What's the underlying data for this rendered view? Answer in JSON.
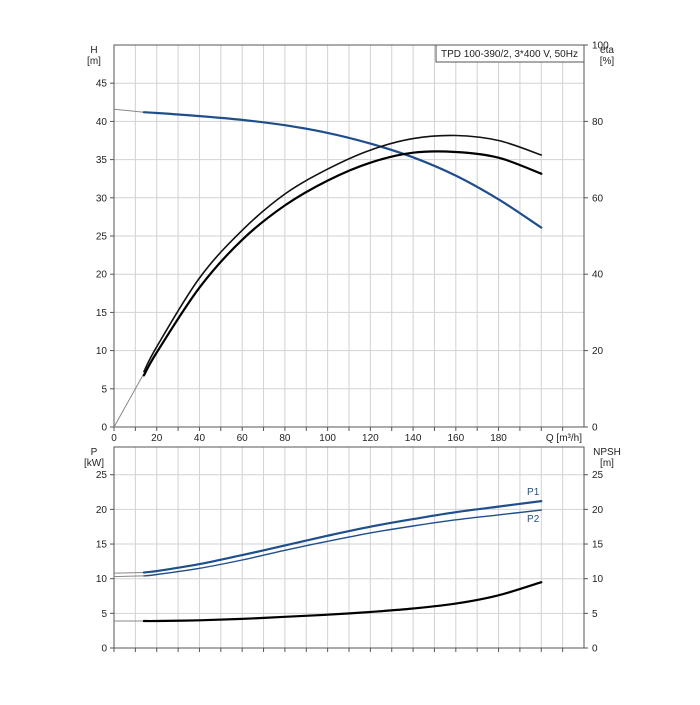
{
  "chart_data": [
    {
      "type": "line",
      "title": "TPD 100-390/2, 3*400 V, 50Hz",
      "xlabel": "Q [m³/h]",
      "xlim": [
        0,
        220
      ],
      "xticks": [
        0,
        20,
        40,
        60,
        80,
        100,
        120,
        140,
        160,
        180
      ],
      "y_left": {
        "label_lines": [
          "H",
          "[m]"
        ],
        "ylim": [
          0,
          50
        ],
        "ticks": [
          0,
          5,
          10,
          15,
          20,
          25,
          30,
          35,
          40,
          45
        ]
      },
      "y_right": {
        "label_lines": [
          "eta",
          "[%]"
        ],
        "ylim": [
          0,
          100
        ],
        "ticks": [
          0,
          20,
          40,
          60,
          80,
          100
        ]
      },
      "series": [
        {
          "axis": "left",
          "color": "#1f4e8c",
          "extension": [
            [
              0,
              41.6
            ],
            [
              14,
              41.2
            ]
          ],
          "x": [
            14,
            20,
            40,
            60,
            80,
            100,
            120,
            140,
            160,
            180,
            200
          ],
          "y": [
            41.2,
            41.1,
            40.7,
            40.2,
            39.5,
            38.5,
            37.1,
            35.3,
            32.9,
            29.8,
            26.1
          ]
        },
        {
          "axis": "right",
          "color": "#111111",
          "extension": [
            [
              0,
              0
            ],
            [
              14,
              14
            ]
          ],
          "x": [
            14,
            20,
            40,
            60,
            80,
            100,
            120,
            140,
            160,
            180,
            200
          ],
          "y": [
            14.5,
            21,
            39,
            51.5,
            61,
            67.5,
            72.5,
            75.5,
            76.3,
            75,
            71.2
          ]
        },
        {
          "axis": "right",
          "color": "#000000",
          "x": [
            14,
            20,
            40,
            60,
            80,
            100,
            120,
            140,
            160,
            180,
            200
          ],
          "y": [
            13.5,
            19.5,
            36.5,
            49,
            58,
            64.5,
            69.2,
            71.8,
            72,
            70.5,
            66.3
          ]
        }
      ]
    },
    {
      "type": "line",
      "xlim": [
        0,
        220
      ],
      "y_left": {
        "label_lines": [
          "P",
          "[kW]"
        ],
        "ylim": [
          0,
          29
        ],
        "ticks": [
          0,
          5,
          10,
          15,
          20,
          25
        ]
      },
      "y_right": {
        "label_lines": [
          "NPSH",
          "[m]"
        ],
        "ylim": [
          0,
          29
        ],
        "ticks": [
          0,
          5,
          10,
          15,
          20,
          25
        ]
      },
      "series": [
        {
          "name": "P1",
          "axis": "left",
          "color": "#1f4e8c",
          "extension": [
            [
              0,
              10.8
            ],
            [
              14,
              10.9
            ]
          ],
          "x": [
            14,
            20,
            40,
            60,
            80,
            100,
            120,
            140,
            160,
            180,
            200
          ],
          "y": [
            10.9,
            11.1,
            12.1,
            13.4,
            14.8,
            16.2,
            17.5,
            18.6,
            19.6,
            20.4,
            21.2
          ]
        },
        {
          "name": "P2",
          "axis": "left",
          "color": "#1f4e8c",
          "extension": [
            [
              0,
              10.3
            ],
            [
              14,
              10.4
            ]
          ],
          "x": [
            14,
            20,
            40,
            60,
            80,
            100,
            120,
            140,
            160,
            180,
            200
          ],
          "y": [
            10.4,
            10.6,
            11.5,
            12.7,
            14.1,
            15.4,
            16.6,
            17.6,
            18.5,
            19.2,
            19.9
          ]
        },
        {
          "axis": "right",
          "color": "#000000",
          "extension": [
            [
              0,
              3.9
            ],
            [
              14,
              3.9
            ]
          ],
          "x": [
            14,
            20,
            40,
            60,
            80,
            100,
            120,
            140,
            160,
            180,
            200
          ],
          "y": [
            3.9,
            3.9,
            4.0,
            4.2,
            4.5,
            4.8,
            5.2,
            5.7,
            6.4,
            7.6,
            9.5
          ]
        }
      ]
    }
  ]
}
